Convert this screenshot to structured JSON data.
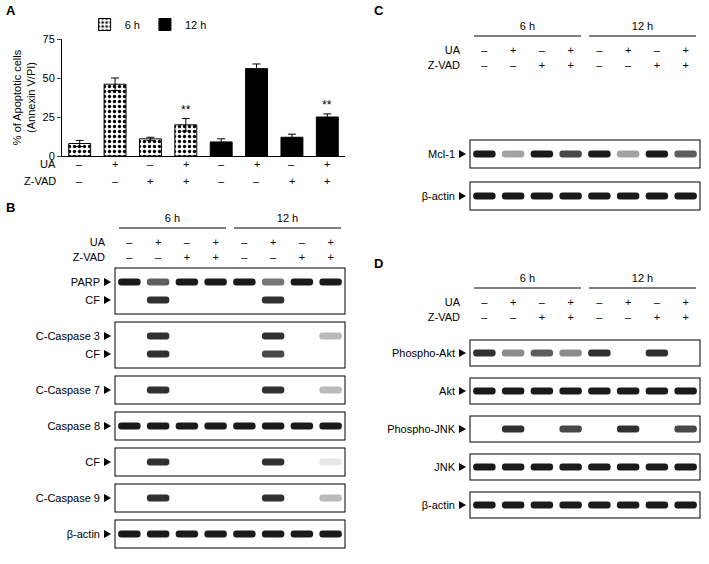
{
  "chart_data": {
    "type": "bar",
    "panel": "A",
    "y_label": [
      "% of Apoptotic cells",
      "(Annexin V/PI)"
    ],
    "categories": [
      null,
      null,
      null,
      null,
      null,
      null,
      null,
      null
    ],
    "series": [
      {
        "name": "6 h",
        "color": "#ffffff",
        "marker": "dotted",
        "values": [
          8,
          46,
          11,
          20,
          null,
          null,
          null,
          null
        ],
        "errors": [
          2,
          4,
          1,
          4,
          null,
          null,
          null,
          null
        ]
      },
      {
        "name": "12 h",
        "color": "#000000",
        "values": [
          null,
          null,
          null,
          null,
          9,
          56,
          12,
          25
        ],
        "errors": [
          null,
          null,
          null,
          null,
          2,
          3,
          2,
          2
        ]
      }
    ],
    "treatments": [
      {
        "name": "UA",
        "signs": [
          "–",
          "+",
          "–",
          "+",
          "–",
          "+",
          "–",
          "+"
        ]
      },
      {
        "name": "Z-VAD",
        "signs": [
          "–",
          "–",
          "+",
          "+",
          "–",
          "–",
          "+",
          "+"
        ]
      }
    ],
    "annotations": [
      {
        "text": "**",
        "category": 3
      },
      {
        "text": "**",
        "category": 7
      }
    ],
    "ylim": [
      0,
      75
    ],
    "yticks": [
      0,
      25,
      50,
      75
    ],
    "grid": false,
    "legend": "top left",
    "tick_labels": "y"
  },
  "blots": [
    {
      "panel": "B",
      "groups": [
        "6 h",
        "12 h"
      ],
      "treatments": [
        {
          "name": "UA",
          "signs": [
            "–",
            "+",
            "–",
            "+",
            "–",
            "+",
            "–",
            "+"
          ]
        },
        {
          "name": "Z-VAD",
          "signs": [
            "–",
            "–",
            "+",
            "+",
            "–",
            "–",
            "+",
            "+"
          ]
        }
      ],
      "boxes": [
        {
          "rows": [
            {
              "label": "PARP",
              "bands": [
                1,
                0.7,
                1,
                1,
                1,
                0.6,
                1,
                1
              ]
            },
            {
              "label": "CF",
              "bands": [
                0,
                0.9,
                0,
                0,
                0,
                0.9,
                0,
                0
              ]
            }
          ]
        },
        {
          "rows": [
            {
              "label": "C-Caspase 3",
              "bands": [
                0,
                0.9,
                0,
                0,
                0,
                0.9,
                0,
                0.3
              ]
            },
            {
              "label": "CF",
              "bands": [
                0,
                0.9,
                0,
                0,
                0,
                0.8,
                0,
                0
              ]
            }
          ]
        },
        {
          "rows": [
            {
              "label": "C-Caspase 7",
              "bands": [
                0,
                0.9,
                0,
                0,
                0,
                0.9,
                0,
                0.3
              ]
            }
          ]
        },
        {
          "rows": [
            {
              "label": "Caspase 8",
              "bands": [
                1,
                1,
                1,
                1,
                1,
                1,
                1,
                1
              ]
            }
          ]
        },
        {
          "rows": [
            {
              "label": "CF",
              "bands": [
                0,
                0.9,
                0,
                0,
                0,
                0.9,
                0,
                0.1
              ]
            }
          ]
        },
        {
          "rows": [
            {
              "label": "C-Caspase 9",
              "bands": [
                0,
                0.9,
                0,
                0,
                0,
                0.9,
                0,
                0.3
              ]
            }
          ]
        },
        {
          "rows": [
            {
              "label": "β-actin",
              "bands": [
                1,
                1,
                1,
                1,
                1,
                1,
                1,
                1
              ]
            }
          ]
        }
      ]
    },
    {
      "panel": "C",
      "groups": [
        "6 h",
        "12 h"
      ],
      "treatments": [
        {
          "name": "UA",
          "signs": [
            "–",
            "+",
            "–",
            "+",
            "–",
            "+",
            "–",
            "+"
          ]
        },
        {
          "name": "Z-VAD",
          "signs": [
            "–",
            "–",
            "+",
            "+",
            "–",
            "–",
            "+",
            "+"
          ]
        }
      ],
      "boxes": [
        {
          "rows": [
            {
              "label": "Mcl-1",
              "bands": [
                1,
                0.4,
                1,
                0.8,
                1,
                0.4,
                1,
                0.7
              ]
            }
          ]
        },
        {
          "rows": [
            {
              "label": "β-actin",
              "bands": [
                1,
                1,
                1,
                1,
                1,
                1,
                1,
                1
              ]
            }
          ]
        }
      ]
    },
    {
      "panel": "D",
      "groups": [
        "6 h",
        "12 h"
      ],
      "treatments": [
        {
          "name": "UA",
          "signs": [
            "–",
            "+",
            "–",
            "+",
            "–",
            "+",
            "–",
            "+"
          ]
        },
        {
          "name": "Z-VAD",
          "signs": [
            "–",
            "–",
            "+",
            "+",
            "–",
            "–",
            "+",
            "+"
          ]
        }
      ],
      "boxes": [
        {
          "rows": [
            {
              "label": "Phospho-Akt",
              "bands": [
                0.9,
                0.5,
                0.7,
                0.5,
                0.9,
                0,
                0.9,
                0
              ]
            }
          ]
        },
        {
          "rows": [
            {
              "label": "Akt",
              "bands": [
                1,
                1,
                1,
                1,
                1,
                1,
                1,
                1
              ]
            }
          ]
        },
        {
          "rows": [
            {
              "label": "Phospho-JNK",
              "bands": [
                0,
                0.9,
                0,
                0.8,
                0,
                0.9,
                0,
                0.8
              ]
            }
          ]
        },
        {
          "rows": [
            {
              "label": "JNK",
              "bands": [
                1,
                1,
                1,
                1,
                1,
                1,
                1,
                1
              ]
            }
          ]
        },
        {
          "rows": [
            {
              "label": "β-actin",
              "bands": [
                1,
                1,
                1,
                1,
                1,
                1,
                1,
                1
              ]
            }
          ]
        }
      ]
    }
  ]
}
